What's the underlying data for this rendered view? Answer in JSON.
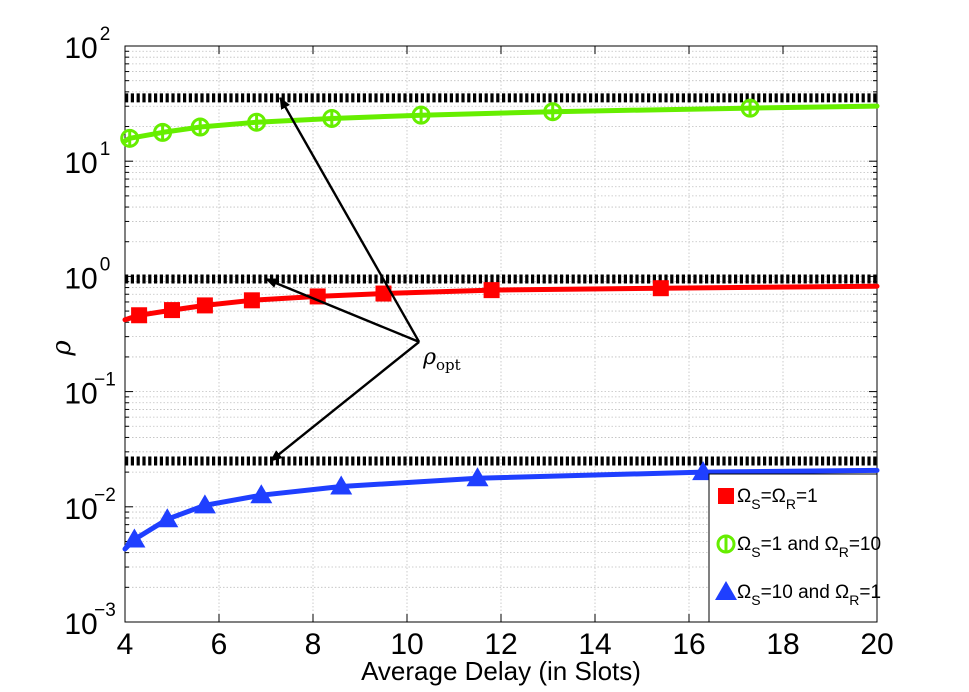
{
  "chart_data": {
    "type": "line",
    "ylog": true,
    "xlabel": "Average Delay (in Slots)",
    "ylabel": "ρ",
    "xlim": [
      4,
      20
    ],
    "ylim": [
      0.001,
      100
    ],
    "xticks": [
      4,
      6,
      8,
      10,
      12,
      14,
      16,
      18,
      20
    ],
    "yticks": [
      0.001,
      0.01,
      0.1,
      1,
      10,
      100
    ],
    "ytick_labels": [
      {
        "base": "10",
        "exp": "−3"
      },
      {
        "base": "10",
        "exp": "−2"
      },
      {
        "base": "10",
        "exp": "−1"
      },
      {
        "base": "10",
        "exp": "0"
      },
      {
        "base": "10",
        "exp": "1"
      },
      {
        "base": "10",
        "exp": "2"
      }
    ],
    "grid": true,
    "legend_position": "bottom-right",
    "series": [
      {
        "name": "Ω_S=Ω_R=1",
        "label_parts": [
          "Ω",
          "S",
          "=Ω",
          "R",
          "=1"
        ],
        "color": "#ff0000",
        "marker": "square",
        "x": [
          4.0,
          4.3,
          5.0,
          5.7,
          6.7,
          8.1,
          9.5,
          11.8,
          15.4,
          20.0
        ],
        "y": [
          0.42,
          0.46,
          0.51,
          0.56,
          0.62,
          0.67,
          0.71,
          0.76,
          0.79,
          0.82
        ],
        "markers_x": [
          4.3,
          5.0,
          5.7,
          6.7,
          8.1,
          9.5,
          11.8,
          15.4
        ],
        "markers_y": [
          0.46,
          0.51,
          0.56,
          0.62,
          0.67,
          0.71,
          0.76,
          0.79
        ],
        "optimum": 0.95
      },
      {
        "name": "Ω_S=1 and Ω_R=10",
        "label_parts": [
          "Ω",
          "S",
          "=1 and Ω",
          "R",
          "=10"
        ],
        "color": "#66ee00",
        "marker": "circle",
        "x": [
          4.0,
          4.1,
          4.8,
          5.6,
          6.8,
          8.4,
          10.3,
          13.1,
          17.3,
          20.0
        ],
        "y": [
          15.0,
          15.8,
          17.8,
          19.8,
          21.8,
          23.5,
          25.1,
          26.9,
          28.9,
          30.1
        ],
        "markers_x": [
          4.1,
          4.8,
          5.6,
          6.8,
          8.4,
          10.3,
          13.1,
          17.3
        ],
        "markers_y": [
          15.8,
          17.8,
          19.8,
          21.8,
          23.5,
          25.1,
          26.9,
          28.9
        ],
        "optimum": 35.5
      },
      {
        "name": "Ω_S=10 and Ω_R=1",
        "label_parts": [
          "Ω",
          "S",
          "=10 and Ω",
          "R",
          "=1"
        ],
        "color": "#1f3fff",
        "marker": "triangle",
        "x": [
          4.0,
          4.2,
          4.9,
          5.7,
          6.9,
          8.6,
          11.5,
          16.3,
          20.0
        ],
        "y": [
          0.0043,
          0.0052,
          0.0078,
          0.0103,
          0.0126,
          0.015,
          0.0177,
          0.02,
          0.0207
        ],
        "markers_x": [
          4.2,
          4.9,
          5.7,
          6.9,
          8.6,
          11.5,
          16.3
        ],
        "markers_y": [
          0.0052,
          0.0078,
          0.0103,
          0.0126,
          0.015,
          0.0177,
          0.02
        ],
        "optimum": 0.025
      }
    ],
    "annotation": {
      "label": "ρ",
      "sub": "opt",
      "anchor": {
        "x": 10.3,
        "y": 0.27
      },
      "arrow_targets": [
        {
          "x": 7.3,
          "y": 35.5
        },
        {
          "x": 7.0,
          "y": 0.95
        },
        {
          "x": 7.1,
          "y": 0.025
        }
      ]
    }
  }
}
